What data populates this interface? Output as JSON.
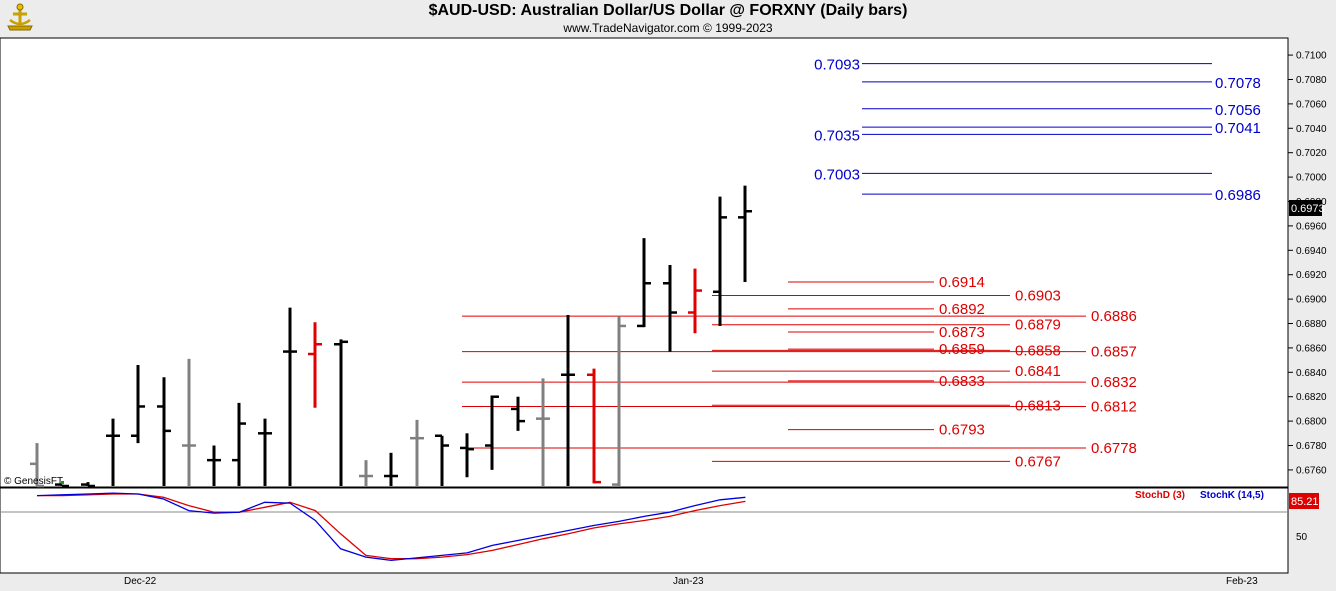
{
  "title": "$AUD-USD:  Australian Dollar/US Dollar @ FORXNY  (Daily bars)",
  "subtitle": "www.TradeNavigator.com © 1999-2023",
  "watermark": "© GenesisFT",
  "colors": {
    "up": "#000000",
    "down_gray": "#808080",
    "highlight": "#e00000",
    "blue_level": "#0000cc",
    "red_level": "#dd0000",
    "stochK": "#0000dd",
    "stochD": "#dd0000"
  },
  "chart_data": {
    "type": "bar",
    "price_axis": {
      "ylim": [
        0.6746,
        0.7114
      ],
      "ticks": [
        "0.6760",
        "0.6780",
        "0.6800",
        "0.6820",
        "0.6840",
        "0.6860",
        "0.6880",
        "0.6900",
        "0.6920",
        "0.6940",
        "0.6960",
        "0.6980",
        "0.7000",
        "0.7020",
        "0.7040",
        "0.7060",
        "0.7080",
        "0.7100"
      ],
      "last_price_label": "0.6973"
    },
    "x_axis": {
      "labels": [
        "Dec-22",
        "Jan-23",
        "Feb-23"
      ]
    },
    "bars": [
      {
        "o": 0.6765,
        "h": 0.6782,
        "l": 0.6745,
        "c": 0.6745,
        "color": "gray"
      },
      {
        "o": 0.6748,
        "h": 0.6748,
        "l": 0.6745,
        "c": 0.6746,
        "color": "black"
      },
      {
        "o": 0.6748,
        "h": 0.675,
        "l": 0.6745,
        "c": 0.6746,
        "color": "black"
      },
      {
        "o": 0.6788,
        "h": 0.6802,
        "l": 0.6745,
        "c": 0.6788,
        "color": "black"
      },
      {
        "o": 0.6788,
        "h": 0.6846,
        "l": 0.6782,
        "c": 0.6812,
        "color": "black"
      },
      {
        "o": 0.6812,
        "h": 0.6836,
        "l": 0.6745,
        "c": 0.6792,
        "color": "black"
      },
      {
        "o": 0.678,
        "h": 0.6851,
        "l": 0.6745,
        "c": 0.678,
        "color": "gray"
      },
      {
        "o": 0.6768,
        "h": 0.678,
        "l": 0.6745,
        "c": 0.6768,
        "color": "black"
      },
      {
        "o": 0.6768,
        "h": 0.6815,
        "l": 0.6745,
        "c": 0.6798,
        "color": "black"
      },
      {
        "o": 0.679,
        "h": 0.6802,
        "l": 0.6745,
        "c": 0.679,
        "color": "black"
      },
      {
        "o": 0.6857,
        "h": 0.6893,
        "l": 0.6745,
        "c": 0.6857,
        "color": "black"
      },
      {
        "o": 0.6855,
        "h": 0.6881,
        "l": 0.6811,
        "c": 0.6863,
        "color": "red"
      },
      {
        "o": 0.6863,
        "h": 0.6867,
        "l": 0.6745,
        "c": 0.6865,
        "color": "black"
      },
      {
        "o": 0.6755,
        "h": 0.6768,
        "l": 0.6745,
        "c": 0.6755,
        "color": "gray"
      },
      {
        "o": 0.6755,
        "h": 0.6774,
        "l": 0.6745,
        "c": 0.6755,
        "color": "black"
      },
      {
        "o": 0.6786,
        "h": 0.6801,
        "l": 0.6745,
        "c": 0.6786,
        "color": "gray"
      },
      {
        "o": 0.6788,
        "h": 0.6788,
        "l": 0.6745,
        "c": 0.678,
        "color": "black"
      },
      {
        "o": 0.6778,
        "h": 0.679,
        "l": 0.6754,
        "c": 0.6777,
        "color": "black"
      },
      {
        "o": 0.678,
        "h": 0.6821,
        "l": 0.676,
        "c": 0.682,
        "color": "black"
      },
      {
        "o": 0.681,
        "h": 0.682,
        "l": 0.6792,
        "c": 0.68,
        "color": "black"
      },
      {
        "o": 0.6802,
        "h": 0.6835,
        "l": 0.6745,
        "c": 0.6802,
        "color": "gray"
      },
      {
        "o": 0.6838,
        "h": 0.6887,
        "l": 0.6745,
        "c": 0.6838,
        "color": "black"
      },
      {
        "o": 0.6838,
        "h": 0.6843,
        "l": 0.6749,
        "c": 0.675,
        "color": "red"
      },
      {
        "o": 0.6748,
        "h": 0.6886,
        "l": 0.6745,
        "c": 0.6878,
        "color": "gray"
      },
      {
        "o": 0.6878,
        "h": 0.695,
        "l": 0.6877,
        "c": 0.6913,
        "color": "black"
      },
      {
        "o": 0.6913,
        "h": 0.6928,
        "l": 0.6857,
        "c": 0.6889,
        "color": "black"
      },
      {
        "o": 0.6889,
        "h": 0.6925,
        "l": 0.6872,
        "c": 0.6907,
        "color": "red"
      },
      {
        "o": 0.6906,
        "h": 0.6984,
        "l": 0.6878,
        "c": 0.6967,
        "color": "black"
      },
      {
        "o": 0.6967,
        "h": 0.6993,
        "l": 0.6914,
        "c": 0.6972,
        "color": "black"
      }
    ],
    "levels_blue": [
      {
        "value": "0.7093",
        "y": 0.7093,
        "side": "left"
      },
      {
        "value": "0.7078",
        "y": 0.7078,
        "side": "right"
      },
      {
        "value": "0.7056",
        "y": 0.7056,
        "side": "right"
      },
      {
        "value": "0.7041",
        "y": 0.7041,
        "side": "right"
      },
      {
        "value": "0.7035",
        "y": 0.7035,
        "side": "left"
      },
      {
        "value": "0.7003",
        "y": 0.7003,
        "side": "left"
      },
      {
        "value": "0.6986",
        "y": 0.6986,
        "side": "right"
      }
    ],
    "levels_red": [
      {
        "value": "0.6914",
        "y": 0.6914,
        "tier": 1
      },
      {
        "value": "0.6903",
        "y": 0.6903,
        "tier": 2
      },
      {
        "value": "0.6892",
        "y": 0.6892,
        "tier": 1
      },
      {
        "value": "0.6886",
        "y": 0.6886,
        "tier": 3
      },
      {
        "value": "0.6879",
        "y": 0.6879,
        "tier": 2
      },
      {
        "value": "0.6873",
        "y": 0.6873,
        "tier": 1
      },
      {
        "value": "0.6859",
        "y": 0.6859,
        "tier": 1
      },
      {
        "value": "0.6858",
        "y": 0.6858,
        "tier": 2
      },
      {
        "value": "0.6857",
        "y": 0.6857,
        "tier": 3
      },
      {
        "value": "0.6841",
        "y": 0.6841,
        "tier": 2
      },
      {
        "value": "0.6833",
        "y": 0.6833,
        "tier": 1
      },
      {
        "value": "0.6832",
        "y": 0.6832,
        "tier": 3
      },
      {
        "value": "0.6813",
        "y": 0.6813,
        "tier": 2
      },
      {
        "value": "0.6812",
        "y": 0.6812,
        "tier": 3
      },
      {
        "value": "0.6793",
        "y": 0.6793,
        "tier": 1
      },
      {
        "value": "0.6778",
        "y": 0.6778,
        "tier": 3
      },
      {
        "value": "0.6767",
        "y": 0.6767,
        "tier": 2
      }
    ],
    "indicator": {
      "labels": [
        "StochD (3)",
        "StochK (14,5)"
      ],
      "ylim": [
        0,
        100
      ],
      "tick": "50",
      "last_value_label": "85.21",
      "stochK": [
        92,
        93,
        94,
        95,
        94,
        88,
        74,
        71,
        72,
        84,
        83,
        62,
        28,
        18,
        14,
        17,
        20,
        23,
        32,
        38,
        44,
        50,
        56,
        61,
        67,
        72,
        80,
        87,
        90
      ],
      "stochD": [
        92,
        92,
        93,
        94,
        94,
        90,
        80,
        72,
        72,
        78,
        84,
        74,
        46,
        20,
        16,
        16,
        18,
        21,
        26,
        33,
        40,
        46,
        53,
        58,
        62,
        67,
        74,
        80,
        85
      ]
    }
  }
}
